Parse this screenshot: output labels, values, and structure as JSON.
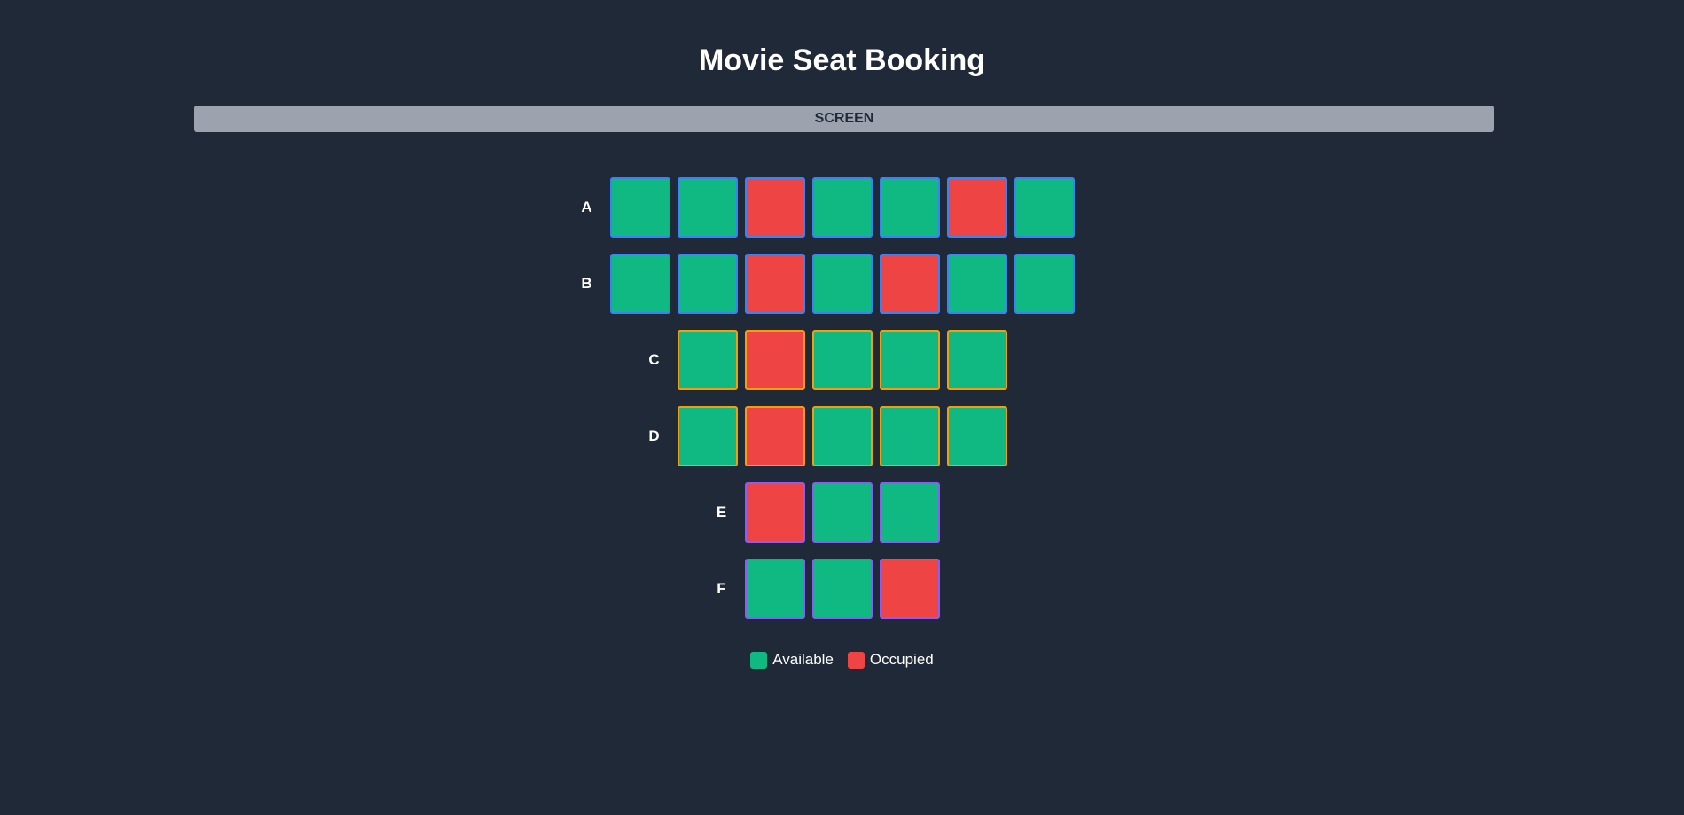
{
  "app": {
    "title": "Movie Seat Booking",
    "screen_label": "SCREEN"
  },
  "colors": {
    "background": "#1f2937",
    "available": "#10b981",
    "occupied": "#ef4444",
    "screen": "#9ca3af",
    "border_premium": "#3b82f6",
    "border_standard": "#f59e0b",
    "border_front": "#8b5cf6"
  },
  "rows": [
    {
      "label": "A",
      "tier": "premium",
      "seats": [
        "available",
        "available",
        "occupied",
        "available",
        "available",
        "occupied",
        "available"
      ]
    },
    {
      "label": "B",
      "tier": "premium",
      "seats": [
        "available",
        "available",
        "occupied",
        "available",
        "occupied",
        "available",
        "available"
      ]
    },
    {
      "label": "C",
      "tier": "standard",
      "seats": [
        "available",
        "occupied",
        "available",
        "available",
        "available"
      ]
    },
    {
      "label": "D",
      "tier": "standard",
      "seats": [
        "available",
        "occupied",
        "available",
        "available",
        "available"
      ]
    },
    {
      "label": "E",
      "tier": "front",
      "seats": [
        "occupied",
        "available",
        "available"
      ]
    },
    {
      "label": "F",
      "tier": "front",
      "seats": [
        "available",
        "available",
        "occupied"
      ]
    }
  ],
  "legend": {
    "available_label": "Available",
    "occupied_label": "Occupied"
  }
}
